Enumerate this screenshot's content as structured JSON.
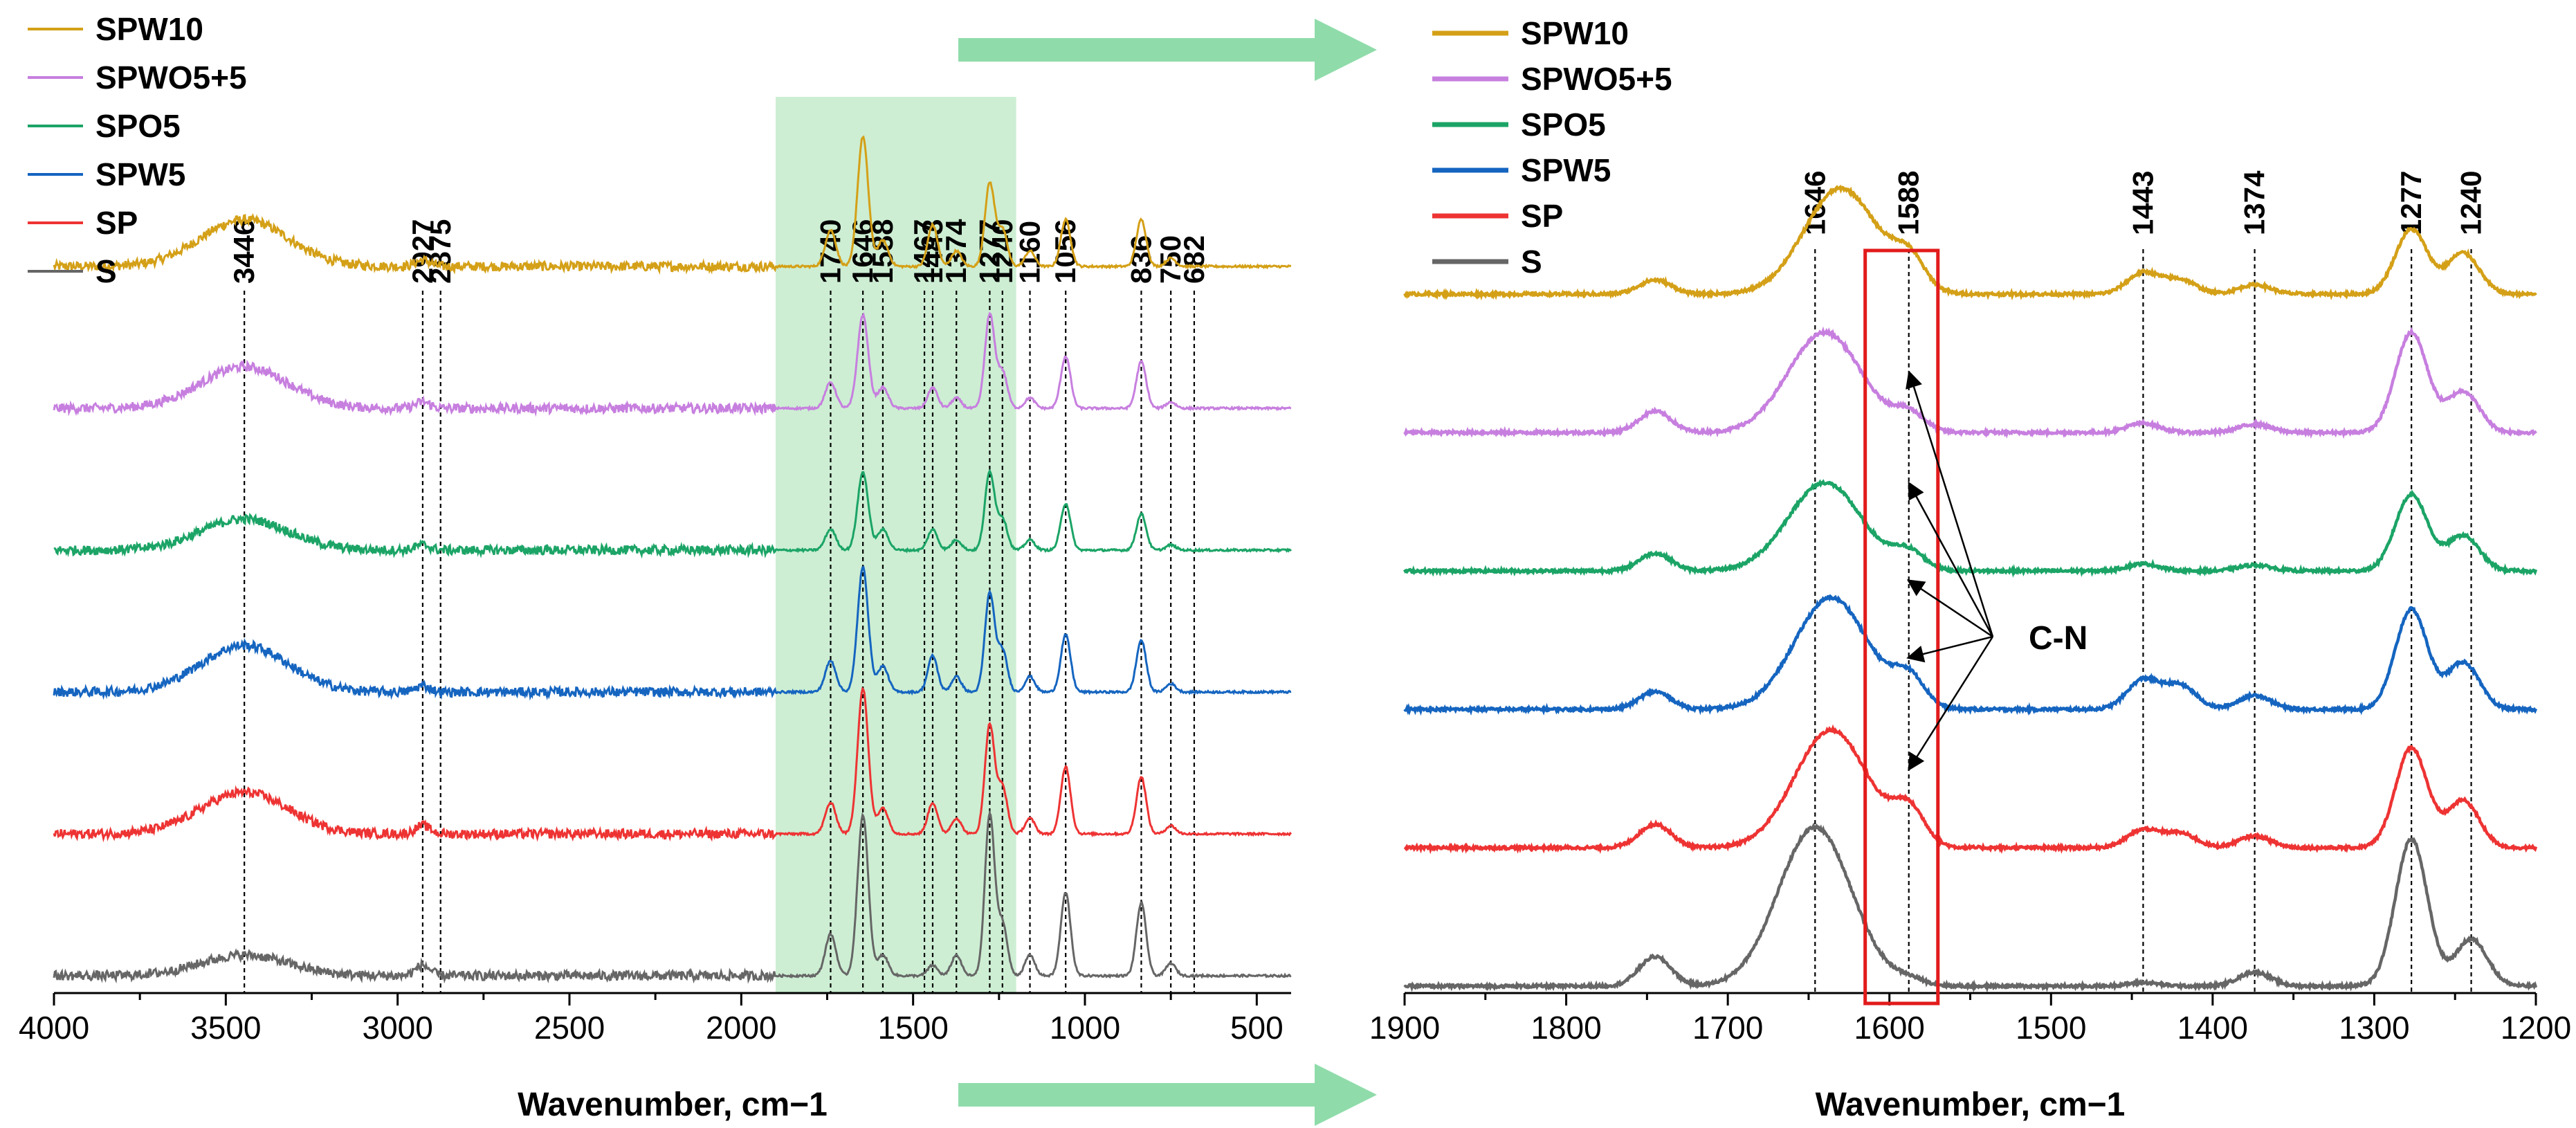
{
  "chart_data": [
    {
      "type": "line",
      "panel": "left",
      "xlabel": "Wavenumber, cm−1",
      "ylabel": "",
      "xlim": [
        4000,
        400
      ],
      "xticks": [
        4000,
        3500,
        3000,
        2500,
        2000,
        1500,
        1000,
        500
      ],
      "highlight_range": [
        1900,
        1200
      ],
      "legend": [
        "SPW10",
        "SPWO5+5",
        "SPO5",
        "SPW5",
        "SP",
        "S"
      ],
      "peak_lines": [
        "3446",
        "2927",
        "2875",
        "1740",
        "1646",
        "1588",
        "1467",
        "1443",
        "1374",
        "1277",
        "1240",
        "1160",
        "1056",
        "836",
        "750",
        "682"
      ],
      "series": [
        {
          "name": "SPW10",
          "color": "#D4A017",
          "offset": 5,
          "peaks": [
            [
              3446,
              0.45
            ],
            [
              2927,
              0.06
            ],
            [
              1740,
              0.35
            ],
            [
              1646,
              1.25
            ],
            [
              1588,
              0.25
            ],
            [
              1443,
              0.4
            ],
            [
              1374,
              0.15
            ],
            [
              1277,
              0.8
            ],
            [
              1240,
              0.35
            ],
            [
              1160,
              0.15
            ],
            [
              1056,
              0.45
            ],
            [
              836,
              0.45
            ],
            [
              750,
              0.08
            ]
          ]
        },
        {
          "name": "SPWO5+5",
          "color": "#C77FDF",
          "offset": 4,
          "peaks": [
            [
              3446,
              0.4
            ],
            [
              2927,
              0.06
            ],
            [
              1740,
              0.25
            ],
            [
              1646,
              0.9
            ],
            [
              1588,
              0.2
            ],
            [
              1443,
              0.2
            ],
            [
              1374,
              0.1
            ],
            [
              1277,
              0.9
            ],
            [
              1240,
              0.35
            ],
            [
              1160,
              0.1
            ],
            [
              1056,
              0.5
            ],
            [
              836,
              0.45
            ],
            [
              750,
              0.06
            ]
          ]
        },
        {
          "name": "SPO5",
          "color": "#1BA466",
          "offset": 3,
          "peaks": [
            [
              3446,
              0.3
            ],
            [
              2927,
              0.05
            ],
            [
              1740,
              0.2
            ],
            [
              1646,
              0.75
            ],
            [
              1588,
              0.2
            ],
            [
              1443,
              0.2
            ],
            [
              1374,
              0.1
            ],
            [
              1277,
              0.75
            ],
            [
              1240,
              0.3
            ],
            [
              1160,
              0.1
            ],
            [
              1056,
              0.45
            ],
            [
              836,
              0.35
            ],
            [
              750,
              0.05
            ]
          ]
        },
        {
          "name": "SPW5",
          "color": "#1565C0",
          "offset": 2,
          "peaks": [
            [
              3446,
              0.45
            ],
            [
              2927,
              0.06
            ],
            [
              1740,
              0.3
            ],
            [
              1646,
              1.2
            ],
            [
              1588,
              0.25
            ],
            [
              1443,
              0.35
            ],
            [
              1374,
              0.15
            ],
            [
              1277,
              0.95
            ],
            [
              1240,
              0.4
            ],
            [
              1160,
              0.15
            ],
            [
              1056,
              0.55
            ],
            [
              836,
              0.5
            ],
            [
              750,
              0.08
            ]
          ]
        },
        {
          "name": "SP",
          "color": "#EE3333",
          "offset": 1,
          "peaks": [
            [
              3446,
              0.4
            ],
            [
              2927,
              0.08
            ],
            [
              1740,
              0.3
            ],
            [
              1646,
              1.4
            ],
            [
              1588,
              0.25
            ],
            [
              1443,
              0.3
            ],
            [
              1374,
              0.15
            ],
            [
              1277,
              1.05
            ],
            [
              1240,
              0.45
            ],
            [
              1160,
              0.15
            ],
            [
              1056,
              0.65
            ],
            [
              836,
              0.55
            ],
            [
              750,
              0.08
            ]
          ]
        },
        {
          "name": "S",
          "color": "#666666",
          "offset": 0,
          "peaks": [
            [
              3446,
              0.2
            ],
            [
              2927,
              0.1
            ],
            [
              1740,
              0.4
            ],
            [
              1646,
              1.55
            ],
            [
              1588,
              0.2
            ],
            [
              1443,
              0.1
            ],
            [
              1374,
              0.2
            ],
            [
              1277,
              1.55
            ],
            [
              1240,
              0.5
            ],
            [
              1160,
              0.2
            ],
            [
              1056,
              0.8
            ],
            [
              836,
              0.7
            ],
            [
              750,
              0.12
            ]
          ]
        }
      ]
    },
    {
      "type": "line",
      "panel": "right",
      "xlabel": "Wavenumber, cm−1",
      "ylabel": "",
      "xlim": [
        1900,
        1200
      ],
      "xticks": [
        1900,
        1800,
        1700,
        1600,
        1500,
        1400,
        1300,
        1200
      ],
      "legend": [
        "SPW10",
        "SPWO5+5",
        "SPO5",
        "SPW5",
        "SP",
        "S"
      ],
      "peak_lines": [
        "1646",
        "1588",
        "1443",
        "1374",
        "1277",
        "1240"
      ],
      "highlight_box": [
        1615,
        1570
      ],
      "annotation": "C-N",
      "series": [
        {
          "name": "SPW10",
          "color": "#D4A017",
          "offset": 5,
          "peaks": [
            [
              1745,
              0.12
            ],
            [
              1630,
              0.9
            ],
            [
              1588,
              0.25
            ],
            [
              1443,
              0.18
            ],
            [
              1420,
              0.12
            ],
            [
              1374,
              0.08
            ],
            [
              1277,
              0.55
            ],
            [
              1245,
              0.35
            ]
          ]
        },
        {
          "name": "SPWO5+5",
          "color": "#C77FDF",
          "offset": 4,
          "peaks": [
            [
              1745,
              0.18
            ],
            [
              1640,
              0.85
            ],
            [
              1588,
              0.15
            ],
            [
              1443,
              0.08
            ],
            [
              1374,
              0.07
            ],
            [
              1277,
              0.85
            ],
            [
              1245,
              0.35
            ]
          ]
        },
        {
          "name": "SPO5",
          "color": "#1BA466",
          "offset": 3,
          "peaks": [
            [
              1745,
              0.15
            ],
            [
              1640,
              0.75
            ],
            [
              1588,
              0.15
            ],
            [
              1443,
              0.06
            ],
            [
              1374,
              0.05
            ],
            [
              1277,
              0.65
            ],
            [
              1245,
              0.3
            ]
          ]
        },
        {
          "name": "SPW5",
          "color": "#1565C0",
          "offset": 2,
          "peaks": [
            [
              1745,
              0.15
            ],
            [
              1636,
              0.95
            ],
            [
              1588,
              0.25
            ],
            [
              1443,
              0.25
            ],
            [
              1420,
              0.2
            ],
            [
              1374,
              0.12
            ],
            [
              1277,
              0.85
            ],
            [
              1245,
              0.4
            ]
          ]
        },
        {
          "name": "SP",
          "color": "#EE3333",
          "offset": 1,
          "peaks": [
            [
              1745,
              0.2
            ],
            [
              1636,
              1.0
            ],
            [
              1588,
              0.3
            ],
            [
              1443,
              0.15
            ],
            [
              1420,
              0.12
            ],
            [
              1374,
              0.1
            ],
            [
              1277,
              0.85
            ],
            [
              1245,
              0.4
            ]
          ]
        },
        {
          "name": "S",
          "color": "#666666",
          "offset": 0,
          "peaks": [
            [
              1745,
              0.25
            ],
            [
              1646,
              1.35
            ],
            [
              1588,
              0.05
            ],
            [
              1443,
              0.03
            ],
            [
              1374,
              0.12
            ],
            [
              1277,
              1.25
            ],
            [
              1240,
              0.4
            ]
          ]
        }
      ]
    }
  ]
}
